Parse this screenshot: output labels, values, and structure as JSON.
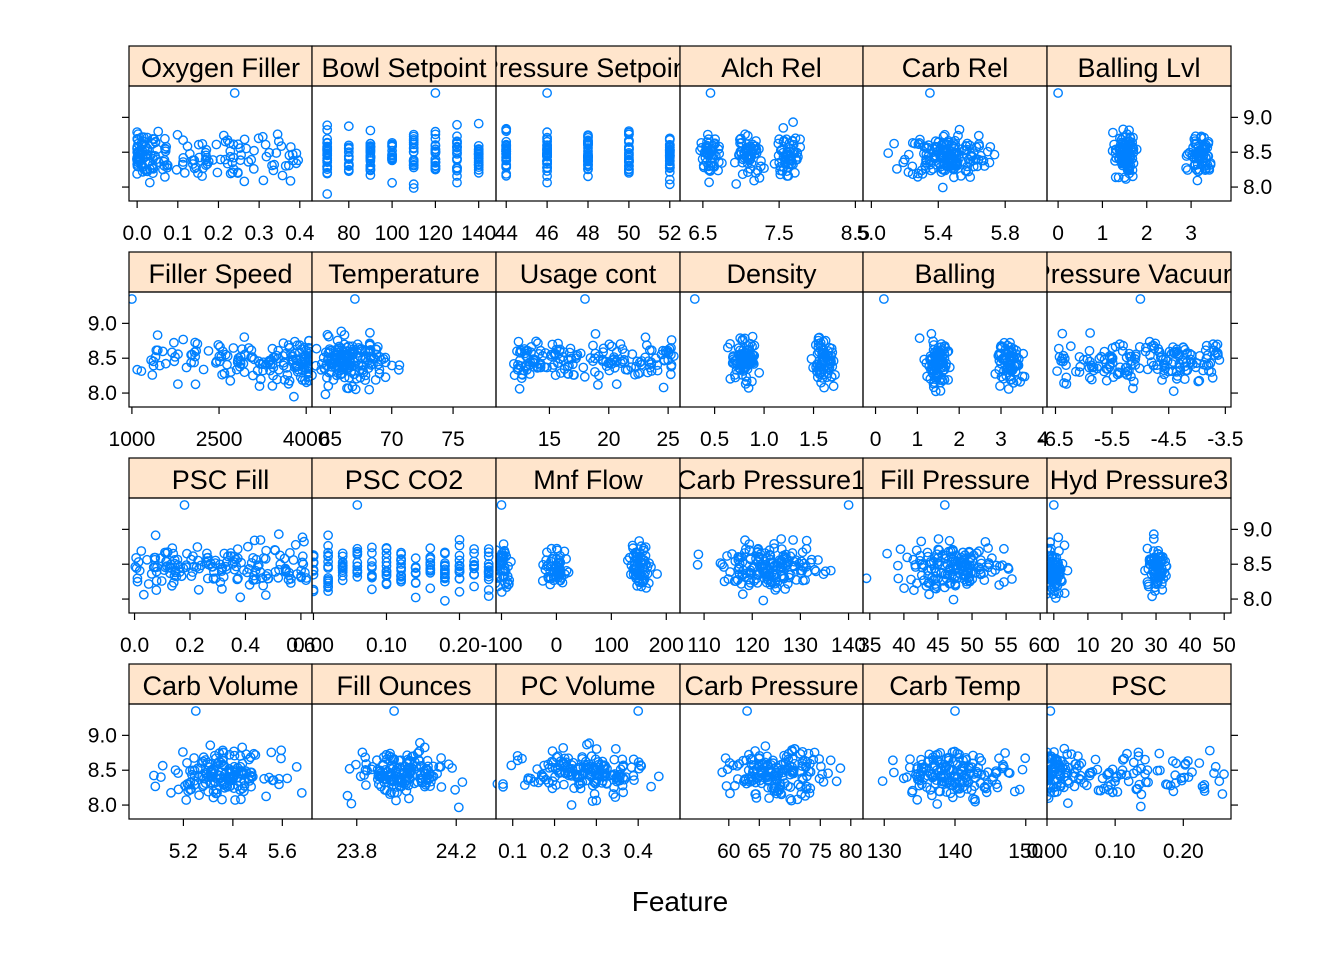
{
  "chart_data": {
    "type": "scatter",
    "layout": "lattice 6 columns x 4 rows",
    "xlabel": "Feature",
    "ylabel": "",
    "ylim": [
      7.8,
      9.45
    ],
    "y_ticks": [
      "8.0",
      "8.5",
      "9.0"
    ],
    "marker_color": "#0080ff",
    "strip_color": "#ffe5cc",
    "panels": [
      {
        "title": "Oxygen Filler",
        "xlim": [
          -0.02,
          0.43
        ],
        "ticks": [
          0,
          0.1,
          0.2,
          0.3,
          0.4
        ],
        "tick_labels": [
          "0.0",
          "0.1",
          "0.2",
          "0.3",
          "0.4"
        ],
        "dist": "skew",
        "point_range": [
          0.0,
          0.4
        ],
        "outlier_x": 0.24
      },
      {
        "title": "Bowl Setpoint",
        "xlim": [
          63,
          148
        ],
        "ticks": [
          80,
          100,
          120,
          140
        ],
        "tick_labels": [
          "80",
          "100",
          "120",
          "140"
        ],
        "dist": "discrete",
        "levels": [
          70,
          80,
          90,
          100,
          110,
          120,
          130,
          140
        ],
        "outlier_x": 120
      },
      {
        "title": "Pressure Setpoint",
        "xlim": [
          43.5,
          52.5
        ],
        "ticks": [
          44,
          46,
          48,
          50,
          52
        ],
        "tick_labels": [
          "44",
          "46",
          "48",
          "50",
          "52"
        ],
        "dist": "discrete",
        "levels": [
          44,
          46,
          48,
          50,
          52
        ],
        "outlier_x": 46
      },
      {
        "title": "Alch Rel",
        "xlim": [
          6.2,
          8.6
        ],
        "ticks": [
          6.5,
          7.5,
          8.5
        ],
        "tick_labels": [
          "6.5",
          "7.5",
          "8.5"
        ],
        "dist": "clusters",
        "clusters": [
          6.6,
          7.1,
          7.6
        ],
        "outlier_x": 6.6
      },
      {
        "title": "Carb Rel",
        "xlim": [
          4.95,
          6.05
        ],
        "ticks": [
          5.0,
          5.4,
          5.8
        ],
        "tick_labels": [
          "5.0",
          "5.4",
          "5.8"
        ],
        "dist": "normal",
        "center": 5.45,
        "spread": 0.12,
        "outlier_x": 5.35
      },
      {
        "title": "Balling Lvl",
        "xlim": [
          -0.25,
          3.9
        ],
        "ticks": [
          0,
          1,
          2,
          3
        ],
        "tick_labels": [
          "0",
          "1",
          "2",
          "3"
        ],
        "dist": "clusters",
        "clusters": [
          1.5,
          3.2
        ],
        "outlier_x": 0.0
      },
      {
        "title": "Filler Speed",
        "xlim": [
          950,
          4100
        ],
        "ticks": [
          1000,
          2500,
          4000
        ],
        "tick_labels": [
          "1000",
          "2500",
          "4000"
        ],
        "dist": "skew-right",
        "point_range": [
          1000,
          4050
        ],
        "outlier_x": 1000
      },
      {
        "title": "Temperature",
        "xlim": [
          63.5,
          78.5
        ],
        "ticks": [
          65,
          70,
          75
        ],
        "tick_labels": [
          "65",
          "70",
          "75"
        ],
        "dist": "normal",
        "center": 66.5,
        "spread": 1.5,
        "outlier_x": 67
      },
      {
        "title": "Usage cont",
        "xlim": [
          10.5,
          26
        ],
        "ticks": [
          15,
          20,
          25
        ],
        "tick_labels": [
          "15",
          "20",
          "25"
        ],
        "dist": "uniform",
        "point_range": [
          12,
          25.5
        ],
        "outlier_x": 18
      },
      {
        "title": "Density",
        "xlim": [
          0.15,
          2.0
        ],
        "ticks": [
          0.5,
          1.0,
          1.5
        ],
        "tick_labels": [
          "0.5",
          "1.0",
          "1.5"
        ],
        "dist": "clusters",
        "clusters": [
          0.8,
          1.6
        ],
        "outlier_x": 0.3
      },
      {
        "title": "Balling",
        "xlim": [
          -0.3,
          4.1
        ],
        "ticks": [
          0,
          1,
          2,
          3,
          4
        ],
        "tick_labels": [
          "0",
          "1",
          "2",
          "3",
          "4"
        ],
        "dist": "clusters",
        "clusters": [
          1.5,
          3.2
        ],
        "outlier_x": 0.2
      },
      {
        "title": "Pressure Vacuum",
        "xlim": [
          -6.65,
          -3.4
        ],
        "ticks": [
          -6.5,
          -5.5,
          -4.5,
          -3.5
        ],
        "tick_labels": [
          "-6.5",
          "-5.5",
          "-4.5",
          "-3.5"
        ],
        "dist": "uniform",
        "point_range": [
          -6.5,
          -3.6
        ],
        "outlier_x": -5.0
      },
      {
        "title": "PSC Fill",
        "xlim": [
          -0.02,
          0.64
        ],
        "ticks": [
          0,
          0.2,
          0.4,
          0.6
        ],
        "tick_labels": [
          "0.0",
          "0.2",
          "0.4",
          "0.6"
        ],
        "dist": "uniform",
        "point_range": [
          0.0,
          0.62
        ],
        "outlier_x": 0.18
      },
      {
        "title": "PSC CO2",
        "xlim": [
          -0.002,
          0.25
        ],
        "ticks": [
          0.0,
          0.1,
          0.2
        ],
        "tick_labels": [
          "0.00",
          "0.10",
          "0.20"
        ],
        "dist": "discrete",
        "levels": [
          0.0,
          0.02,
          0.04,
          0.06,
          0.08,
          0.1,
          0.12,
          0.14,
          0.16,
          0.18,
          0.2,
          0.22,
          0.24
        ],
        "outlier_x": 0.06
      },
      {
        "title": "Mnf Flow",
        "xlim": [
          -110,
          225
        ],
        "ticks": [
          -100,
          0,
          100,
          200
        ],
        "tick_labels": [
          "-100",
          "0",
          "100",
          "200"
        ],
        "dist": "clusters",
        "clusters": [
          -100,
          0,
          150
        ],
        "outlier_x": -100
      },
      {
        "title": "Carb Pressure1",
        "xlim": [
          105,
          143
        ],
        "ticks": [
          110,
          120,
          130,
          140
        ],
        "tick_labels": [
          "110",
          "120",
          "130",
          "140"
        ],
        "dist": "normal",
        "center": 124,
        "spread": 5,
        "outlier_x": 140
      },
      {
        "title": "Fill Pressure",
        "xlim": [
          34,
          61
        ],
        "ticks": [
          35,
          40,
          45,
          50,
          55,
          60
        ],
        "tick_labels": [
          "35",
          "40",
          "45",
          "50",
          "55",
          "60"
        ],
        "dist": "normal",
        "center": 47,
        "spread": 4,
        "outlier_x": 46
      },
      {
        "title": "Hyd Pressure3",
        "xlim": [
          -2,
          52
        ],
        "ticks": [
          0,
          10,
          20,
          30,
          40,
          50
        ],
        "tick_labels": [
          "0",
          "10",
          "20",
          "30",
          "40",
          "50"
        ],
        "dist": "clusters",
        "clusters": [
          0,
          30
        ],
        "outlier_x": 0
      },
      {
        "title": "Carb Volume",
        "xlim": [
          4.98,
          5.72
        ],
        "ticks": [
          5.2,
          5.4,
          5.6
        ],
        "tick_labels": [
          "5.2",
          "5.4",
          "5.6"
        ],
        "dist": "normal",
        "center": 5.36,
        "spread": 0.1,
        "outlier_x": 5.25
      },
      {
        "title": "Fill Ounces",
        "xlim": [
          23.62,
          24.36
        ],
        "ticks": [
          23.8,
          24.2
        ],
        "tick_labels": [
          "23.8",
          "24.2"
        ],
        "dist": "normal",
        "center": 23.98,
        "spread": 0.09,
        "outlier_x": 23.95
      },
      {
        "title": "PC Volume",
        "xlim": [
          0.06,
          0.5
        ],
        "ticks": [
          0.1,
          0.2,
          0.3,
          0.4
        ],
        "tick_labels": [
          "0.1",
          "0.2",
          "0.3",
          "0.4"
        ],
        "dist": "normal",
        "center": 0.27,
        "spread": 0.07,
        "outlier_x": 0.4
      },
      {
        "title": "Carb Pressure",
        "xlim": [
          52,
          82
        ],
        "ticks": [
          60,
          65,
          70,
          75,
          80
        ],
        "tick_labels": [
          "60",
          "65",
          "70",
          "75",
          "80"
        ],
        "dist": "normal",
        "center": 68,
        "spread": 4,
        "outlier_x": 63
      },
      {
        "title": "Carb Temp",
        "xlim": [
          127,
          153
        ],
        "ticks": [
          130,
          140,
          150
        ],
        "tick_labels": [
          "130",
          "140",
          "150"
        ],
        "dist": "normal",
        "center": 140,
        "spread": 4,
        "outlier_x": 140
      },
      {
        "title": "PSC",
        "xlim": [
          0.0,
          0.27
        ],
        "ticks": [
          0.0,
          0.1,
          0.2
        ],
        "tick_labels": [
          "0.00",
          "0.10",
          "0.20"
        ],
        "dist": "skew",
        "point_range": [
          0.0,
          0.26
        ],
        "outlier_x": 0.005
      }
    ]
  }
}
